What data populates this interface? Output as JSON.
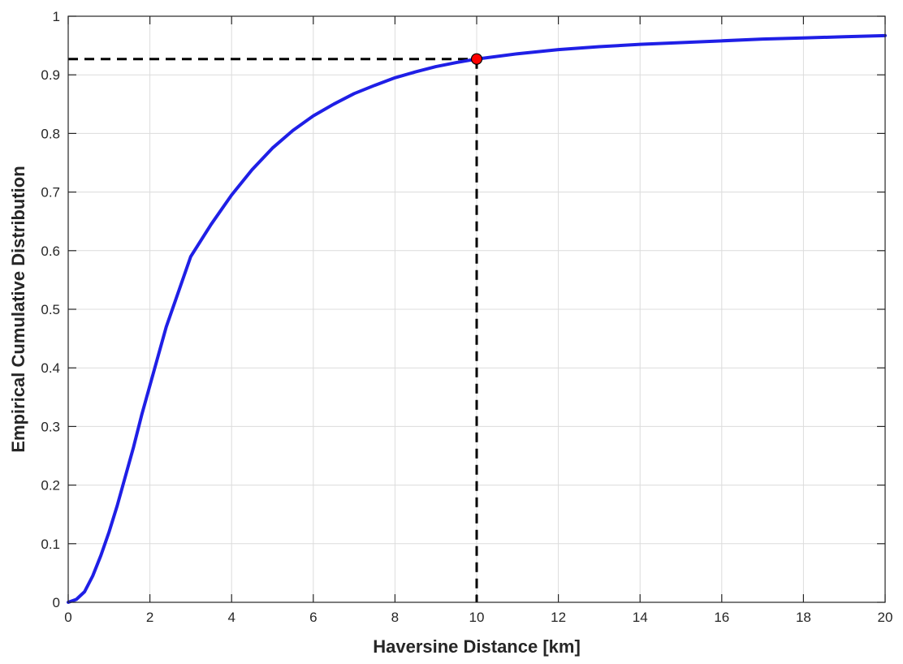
{
  "chart_data": {
    "type": "line",
    "title": "",
    "xlabel": "Haversine Distance [km]",
    "ylabel": "Empirical Cumulative Distribution",
    "xlim": [
      0,
      20
    ],
    "ylim": [
      0,
      1
    ],
    "xticks": [
      0,
      2,
      4,
      6,
      8,
      10,
      12,
      14,
      16,
      18,
      20
    ],
    "xtick_labels": [
      "0",
      "2",
      "4",
      "6",
      "8",
      "10",
      "12",
      "14",
      "16",
      "18",
      "20"
    ],
    "yticks": [
      0,
      0.1,
      0.2,
      0.3,
      0.4,
      0.5,
      0.6,
      0.7,
      0.8,
      0.9,
      1
    ],
    "ytick_labels": [
      "0",
      "0.1",
      "0.2",
      "0.3",
      "0.4",
      "0.5",
      "0.6",
      "0.7",
      "0.8",
      "0.9",
      "1"
    ],
    "grid": true,
    "legend": "none",
    "series": [
      {
        "color": "#1f1fe6",
        "x": [
          0,
          0.2,
          0.4,
          0.6,
          0.8,
          1.0,
          1.2,
          1.4,
          1.6,
          1.8,
          2.0,
          2.2,
          2.4,
          2.6,
          2.8,
          3.0,
          3.5,
          4.0,
          4.5,
          5.0,
          5.5,
          6.0,
          6.5,
          7.0,
          7.5,
          8.0,
          8.5,
          9.0,
          9.5,
          10.0,
          11.0,
          12.0,
          13.0,
          14.0,
          15.0,
          16.0,
          17.0,
          18.0,
          19.0,
          20.0
        ],
        "y": [
          0,
          0.005,
          0.018,
          0.045,
          0.08,
          0.12,
          0.165,
          0.215,
          0.265,
          0.32,
          0.37,
          0.42,
          0.47,
          0.51,
          0.55,
          0.59,
          0.645,
          0.695,
          0.738,
          0.775,
          0.805,
          0.83,
          0.85,
          0.868,
          0.882,
          0.895,
          0.905,
          0.914,
          0.921,
          0.927,
          0.936,
          0.943,
          0.948,
          0.952,
          0.955,
          0.958,
          0.961,
          0.963,
          0.965,
          0.967
        ]
      }
    ],
    "marker": {
      "x": 10,
      "y": 0.927,
      "color": "#ff0000"
    },
    "reference_lines": {
      "x": 10,
      "y": 0.927,
      "style": "dashed",
      "color": "#000000"
    }
  }
}
